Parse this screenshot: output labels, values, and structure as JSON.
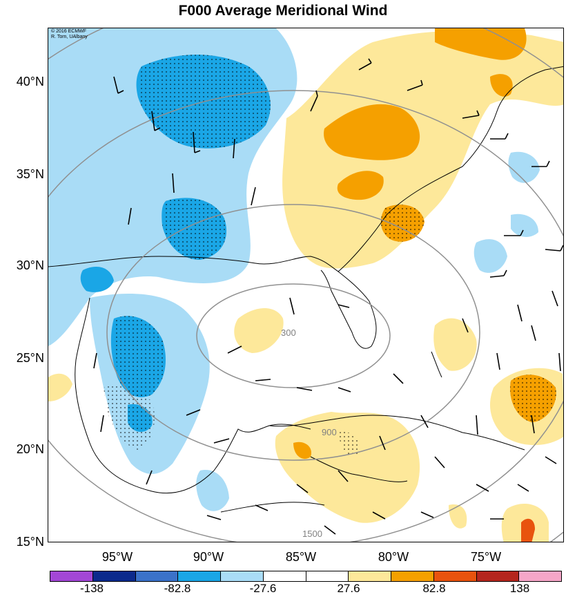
{
  "title": "F000 Average Meridional Wind",
  "credit": [
    "© 2016 ECMWF",
    "R. Torn, UAlbany"
  ],
  "lat_labels": [
    "40°N",
    "35°N",
    "30°N",
    "25°N",
    "20°N",
    "15°N"
  ],
  "lon_labels": [
    "95°W",
    "90°W",
    "85°W",
    "80°W",
    "75°W"
  ],
  "contour_labels": [
    "300",
    "900",
    "1500"
  ],
  "colorbar": {
    "colors": [
      "#a347d6",
      "#0c2a8c",
      "#3b72c9",
      "#1aa6e6",
      "#a9dcf6",
      "#ffffff",
      "#ffffff",
      "#fde89a",
      "#f5a000",
      "#e8530e",
      "#b5261e",
      "#f5a6c8"
    ],
    "ticks": [
      "-138",
      "-82.8",
      "-27.6",
      "27.6",
      "82.8",
      "138"
    ]
  },
  "colors": {
    "strong_southerly": "#f5a000",
    "weak_southerly": "#fde89a",
    "strong_northerly": "#1aa6e6",
    "weak_northerly": "#a9dcf6"
  }
}
